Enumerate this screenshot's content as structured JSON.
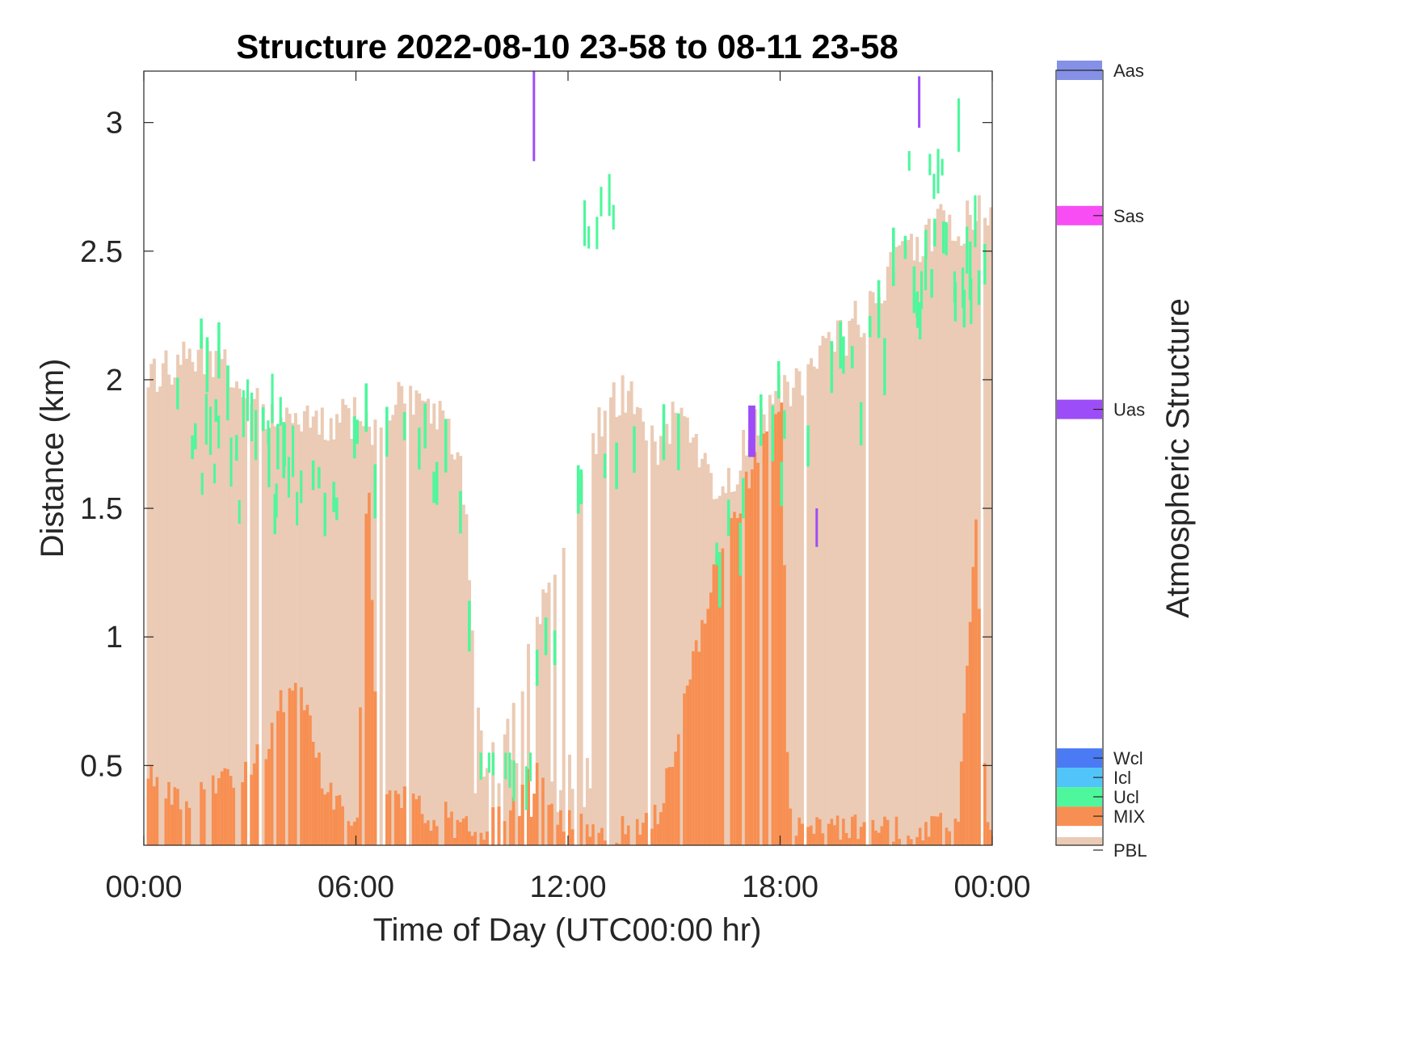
{
  "chart_data": {
    "type": "heatmap",
    "title": "Structure 2022-08-10 23-58 to 08-11 23-58",
    "xlabel": "Time of Day (UTC00:00 hr)",
    "ylabel": "Distance (km)",
    "xlim_hours": [
      0,
      24
    ],
    "ylim_km": [
      0.19,
      3.2
    ],
    "x_ticks": [
      "00:00",
      "06:00",
      "12:00",
      "18:00",
      "00:00"
    ],
    "y_ticks": [
      "0.5",
      "1",
      "1.5",
      "2",
      "2.5",
      "3"
    ],
    "y_tick_values": [
      0.5,
      1,
      1.5,
      2,
      2.5,
      3
    ],
    "grid": false,
    "colorbar": {
      "label": "Atmospheric Structure",
      "classes": [
        {
          "name": "PBL",
          "color": "#EBCBB5"
        },
        {
          "name": "MIX",
          "color": "#F88F52"
        },
        {
          "name": "Ucl",
          "color": "#4EF79C"
        },
        {
          "name": "Icl",
          "color": "#51C5F9"
        },
        {
          "name": "Wcl",
          "color": "#4A7BF5"
        },
        {
          "name": "Uas",
          "color": "#9D4DF7"
        },
        {
          "name": "Sas",
          "color": "#F84DF5"
        },
        {
          "name": "Aas",
          "color": "#8591E6"
        }
      ]
    },
    "pbl_top_profile": [
      [
        0,
        2.0
      ],
      [
        0.5,
        2.05
      ],
      [
        1.2,
        2.08
      ],
      [
        1.8,
        2.12
      ],
      [
        2.4,
        2.0
      ],
      [
        3.0,
        1.9
      ],
      [
        3.5,
        1.88
      ],
      [
        4.2,
        1.83
      ],
      [
        5.0,
        1.82
      ],
      [
        5.5,
        1.85
      ],
      [
        6.0,
        1.85
      ],
      [
        6.5,
        1.82
      ],
      [
        7.0,
        1.9
      ],
      [
        7.5,
        1.92
      ],
      [
        8.0,
        1.9
      ],
      [
        8.5,
        1.85
      ],
      [
        9.0,
        1.6
      ],
      [
        9.3,
        1.0
      ],
      [
        9.5,
        0.55
      ],
      [
        10.0,
        0.5
      ],
      [
        10.5,
        0.8
      ],
      [
        11.0,
        1.0
      ],
      [
        11.5,
        1.2
      ],
      [
        12.0,
        1.4
      ],
      [
        12.5,
        1.7
      ],
      [
        13.0,
        1.9
      ],
      [
        13.5,
        1.96
      ],
      [
        14.0,
        1.9
      ],
      [
        14.5,
        1.75
      ],
      [
        15.0,
        1.85
      ],
      [
        15.5,
        1.8
      ],
      [
        16.0,
        1.55
      ],
      [
        16.5,
        1.6
      ],
      [
        17.0,
        1.75
      ],
      [
        17.5,
        1.85
      ],
      [
        18.0,
        1.95
      ],
      [
        18.5,
        2.0
      ],
      [
        19.0,
        2.1
      ],
      [
        19.5,
        2.15
      ],
      [
        20.0,
        2.2
      ],
      [
        20.5,
        2.3
      ],
      [
        21.0,
        2.4
      ],
      [
        21.5,
        2.5
      ],
      [
        22.0,
        2.55
      ],
      [
        22.5,
        2.6
      ],
      [
        23.0,
        2.6
      ],
      [
        23.5,
        2.65
      ],
      [
        24.0,
        2.7
      ]
    ],
    "mix_top_profile": [
      [
        0,
        0.5
      ],
      [
        0.5,
        0.4
      ],
      [
        1.0,
        0.35
      ],
      [
        1.5,
        0.38
      ],
      [
        2.0,
        0.42
      ],
      [
        2.5,
        0.45
      ],
      [
        3.0,
        0.5
      ],
      [
        3.5,
        0.6
      ],
      [
        4.0,
        0.8
      ],
      [
        4.5,
        0.75
      ],
      [
        5.0,
        0.45
      ],
      [
        5.5,
        0.35
      ],
      [
        6.0,
        0.3
      ],
      [
        6.3,
        1.7
      ],
      [
        6.6,
        0.4
      ],
      [
        7.0,
        0.35
      ],
      [
        7.5,
        0.4
      ],
      [
        8.0,
        0.3
      ],
      [
        8.5,
        0.3
      ],
      [
        9.0,
        0.25
      ],
      [
        9.5,
        0.25
      ],
      [
        10.0,
        0.3
      ],
      [
        10.5,
        0.4
      ],
      [
        11.0,
        0.5
      ],
      [
        11.5,
        0.3
      ],
      [
        12.0,
        0.28
      ],
      [
        12.5,
        0.25
      ],
      [
        13.0,
        0.25
      ],
      [
        13.5,
        0.25
      ],
      [
        14.0,
        0.25
      ],
      [
        14.5,
        0.3
      ],
      [
        15.0,
        0.6
      ],
      [
        15.5,
        0.9
      ],
      [
        16.0,
        1.2
      ],
      [
        16.5,
        1.4
      ],
      [
        17.0,
        1.6
      ],
      [
        17.5,
        1.8
      ],
      [
        18.0,
        1.9
      ],
      [
        18.2,
        0.3
      ],
      [
        18.5,
        0.25
      ],
      [
        19.0,
        0.25
      ],
      [
        20.0,
        0.25
      ],
      [
        21.0,
        0.25
      ],
      [
        22.0,
        0.25
      ],
      [
        23.0,
        0.3
      ],
      [
        23.5,
        1.4
      ],
      [
        23.8,
        0.3
      ],
      [
        24.0,
        0.25
      ]
    ],
    "notable_cloud_features": [
      {
        "class": "Ucl",
        "hour_range": [
          12.2,
          13.3
        ],
        "km_range": [
          2.3,
          2.8
        ]
      },
      {
        "class": "Ucl",
        "hour_range": [
          9.5,
          11.0
        ],
        "km_range": [
          0.3,
          0.55
        ]
      },
      {
        "class": "Ucl",
        "hour_range": [
          1.5,
          4.5
        ],
        "km_range": [
          1.4,
          2.1
        ]
      },
      {
        "class": "Ucl",
        "hour_range": [
          21.5,
          23.5
        ],
        "km_range": [
          2.2,
          3.2
        ]
      },
      {
        "class": "Uas",
        "hour_range": [
          11.0,
          11.05
        ],
        "km_range": [
          2.85,
          3.2
        ]
      },
      {
        "class": "Uas",
        "hour_range": [
          21.9,
          21.95
        ],
        "km_range": [
          2.98,
          3.18
        ]
      },
      {
        "class": "Uas",
        "hour_range": [
          17.1,
          17.3
        ],
        "km_range": [
          1.7,
          1.9
        ]
      },
      {
        "class": "Uas",
        "hour_range": [
          19.0,
          19.05
        ],
        "km_range": [
          1.35,
          1.5
        ]
      }
    ]
  }
}
